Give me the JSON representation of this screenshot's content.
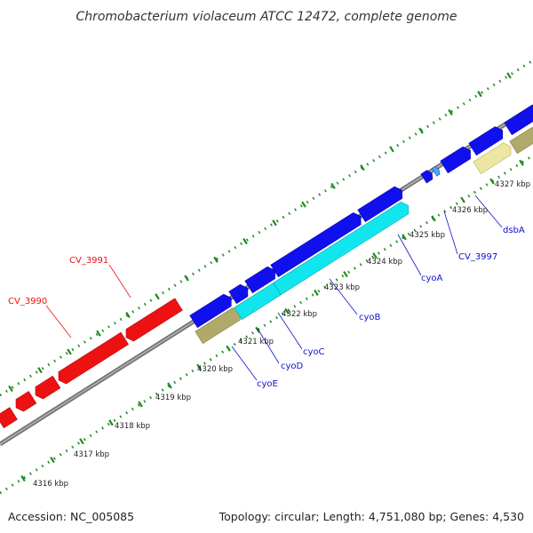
{
  "title": "Chromobacterium violaceum ATCC 12472, complete genome",
  "footer": {
    "accession": "Accession: NC_005085",
    "stats": "Topology: circular; Length: 4,751,080 bp; Genes: 4,530"
  },
  "colors": {
    "backbone": "#888888",
    "tick": "#1e8a1e",
    "forward_gene": "#1010ee",
    "reverse_gene": "#ee1111",
    "cyo_gene": "#11e6ee",
    "olive_gene": "#b0aa6a",
    "pale_gene": "#ede6a0",
    "label_blue": "#1010cc",
    "label_red": "#ee1111"
  },
  "tick_labels": [
    "4316 kbp",
    "4317 kbp",
    "4318 kbp",
    "4319 kbp",
    "4320 kbp",
    "4321 kbp",
    "4322 kbp",
    "4323 kbp",
    "4324 kbp",
    "4325 kbp",
    "4326 kbp",
    "4327 kbp"
  ],
  "gene_labels": [
    {
      "id": "CV_3991",
      "text": "CV_3991",
      "strand": "reverse"
    },
    {
      "id": "CV_3990",
      "text": "CV_3990",
      "strand": "reverse"
    },
    {
      "id": "cyoE",
      "text": "cyoE",
      "strand": "forward"
    },
    {
      "id": "cyoD",
      "text": "cyoD",
      "strand": "forward"
    },
    {
      "id": "cyoC",
      "text": "cyoC",
      "strand": "forward"
    },
    {
      "id": "cyoB",
      "text": "cyoB",
      "strand": "forward"
    },
    {
      "id": "cyoA",
      "text": "cyoA",
      "strand": "forward"
    },
    {
      "id": "CV_3997",
      "text": "CV_3997",
      "strand": "forward"
    },
    {
      "id": "dsbA",
      "text": "dsbA",
      "strand": "forward"
    }
  ]
}
